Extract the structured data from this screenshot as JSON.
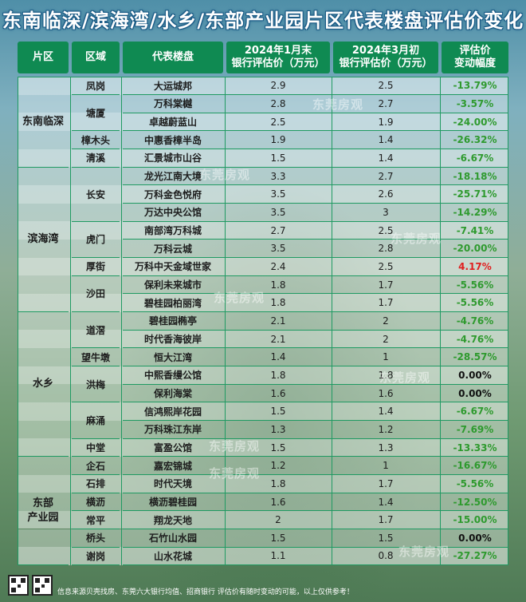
{
  "title": "东南临深/滨海湾/水乡/东部产业园片区代表楼盘评估价变化",
  "header": {
    "area": "片区",
    "district": "区域",
    "project": "代表楼盘",
    "jan_line1": "2024年1月末",
    "jan_line2": "银行评估价（万元）",
    "mar_line1": "2024年3月初",
    "mar_line2": "银行评估价（万元）",
    "chg_line1": "评估价",
    "chg_line2": "变动幅度"
  },
  "groups": [
    {
      "label_line1": "东南临深",
      "label_line2": ""
    },
    {
      "label_line1": "滨海湾",
      "label_line2": ""
    },
    {
      "label_line1": "水乡",
      "label_line2": ""
    },
    {
      "label_line1": "东部",
      "label_line2": "产业园"
    }
  ],
  "districts": [
    "凤岗",
    "塘厦",
    "樟木头",
    "清溪",
    "长安",
    "虎门",
    "厚街",
    "沙田",
    "道滘",
    "望牛墩",
    "洪梅",
    "麻涌",
    "中堂",
    "企石",
    "石排",
    "横沥",
    "常平",
    "桥头",
    "谢岗"
  ],
  "rows": [
    {
      "project": "大运城邦",
      "jan": "2.9",
      "mar": "2.5",
      "change": "-13.79%"
    },
    {
      "project": "万科棠樾",
      "jan": "2.8",
      "mar": "2.7",
      "change": "-3.57%"
    },
    {
      "project": "卓越蔚蓝山",
      "jan": "2.5",
      "mar": "1.9",
      "change": "-24.00%"
    },
    {
      "project": "中惠香樟半岛",
      "jan": "1.9",
      "mar": "1.4",
      "change": "-26.32%"
    },
    {
      "project": "汇景城市山谷",
      "jan": "1.5",
      "mar": "1.4",
      "change": "-6.67%"
    },
    {
      "project": "龙光江南大境",
      "jan": "3.3",
      "mar": "2.7",
      "change": "-18.18%"
    },
    {
      "project": "万科金色悦府",
      "jan": "3.5",
      "mar": "2.6",
      "change": "-25.71%"
    },
    {
      "project": "万达中央公馆",
      "jan": "3.5",
      "mar": "3",
      "change": "-14.29%"
    },
    {
      "project": "南部湾万科城",
      "jan": "2.7",
      "mar": "2.5",
      "change": "-7.41%"
    },
    {
      "project": "万科云城",
      "jan": "3.5",
      "mar": "2.8",
      "change": "-20.00%"
    },
    {
      "project": "万科中天金域世家",
      "jan": "2.4",
      "mar": "2.5",
      "change": "4.17%"
    },
    {
      "project": "保利未来城市",
      "jan": "1.8",
      "mar": "1.7",
      "change": "-5.56%"
    },
    {
      "project": "碧桂园柏丽湾",
      "jan": "1.8",
      "mar": "1.7",
      "change": "-5.56%"
    },
    {
      "project": "碧桂园椭亭",
      "jan": "2.1",
      "mar": "2",
      "change": "-4.76%"
    },
    {
      "project": "时代香海彼岸",
      "jan": "2.1",
      "mar": "2",
      "change": "-4.76%"
    },
    {
      "project": "恒大江湾",
      "jan": "1.4",
      "mar": "1",
      "change": "-28.57%"
    },
    {
      "project": "中熙香缦公馆",
      "jan": "1.8",
      "mar": "1.8",
      "change": "0.00%"
    },
    {
      "project": "保利海棠",
      "jan": "1.6",
      "mar": "1.6",
      "change": "0.00%"
    },
    {
      "project": "信鸿熙岸花园",
      "jan": "1.5",
      "mar": "1.4",
      "change": "-6.67%"
    },
    {
      "project": "万科珠江东岸",
      "jan": "1.3",
      "mar": "1.2",
      "change": "-7.69%"
    },
    {
      "project": "富盈公馆",
      "jan": "1.5",
      "mar": "1.3",
      "change": "-13.33%"
    },
    {
      "project": "嘉宏锦城",
      "jan": "1.2",
      "mar": "1",
      "change": "-16.67%"
    },
    {
      "project": "时代天境",
      "jan": "1.8",
      "mar": "1.7",
      "change": "-5.56%"
    },
    {
      "project": "横沥碧桂园",
      "jan": "1.6",
      "mar": "1.4",
      "change": "-12.50%"
    },
    {
      "project": "翔龙天地",
      "jan": "2",
      "mar": "1.7",
      "change": "-15.00%"
    },
    {
      "project": "石竹山水园",
      "jan": "1.5",
      "mar": "1.5",
      "change": "0.00%"
    },
    {
      "project": "山水花城",
      "jan": "1.1",
      "mar": "0.8",
      "change": "-27.27%"
    }
  ],
  "watermark": "东莞房观",
  "footer": {
    "note": "信息来源贝壳找房、东莞六大银行均值、招商银行   评估价有随时变动的可能，以上仅供参考！"
  },
  "colors": {
    "header_bg": "#0f8a52",
    "negative": "#2e9a2e",
    "positive": "#e02020",
    "zero": "#111111"
  }
}
